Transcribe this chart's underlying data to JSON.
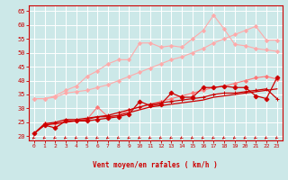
{
  "bg_color": "#cce8e8",
  "grid_color": "#ffffff",
  "xlabel": "Vent moyen/en rafales ( km/h )",
  "xlabel_color": "#cc0000",
  "tick_color": "#cc0000",
  "arrow_color": "#cc0000",
  "xlim": [
    -0.5,
    23.5
  ],
  "ylim": [
    18.5,
    67
  ],
  "yticks": [
    20,
    25,
    30,
    35,
    40,
    45,
    50,
    55,
    60,
    65
  ],
  "xticks": [
    0,
    1,
    2,
    3,
    4,
    5,
    6,
    7,
    8,
    9,
    10,
    11,
    12,
    13,
    14,
    15,
    16,
    17,
    18,
    19,
    20,
    21,
    22,
    23
  ],
  "series": [
    {
      "color": "#ffaaaa",
      "lw": 0.8,
      "marker": "D",
      "ms": 2.0,
      "y": [
        33.5,
        33.5,
        34.0,
        35.5,
        36.0,
        36.5,
        37.5,
        38.5,
        40.0,
        41.5,
        43.0,
        44.5,
        46.0,
        47.5,
        48.5,
        50.0,
        51.5,
        53.5,
        55.0,
        56.5,
        58.0,
        59.5,
        54.5,
        54.5
      ]
    },
    {
      "color": "#ffaaaa",
      "lw": 0.8,
      "marker": "D",
      "ms": 2.0,
      "y": [
        33.5,
        33.5,
        34.5,
        36.5,
        38.0,
        41.5,
        43.5,
        46.0,
        47.5,
        47.5,
        53.5,
        53.5,
        52.0,
        52.5,
        52.0,
        55.0,
        58.0,
        63.5,
        58.5,
        53.0,
        52.5,
        51.5,
        51.0,
        50.5
      ]
    },
    {
      "color": "#ff7777",
      "lw": 0.8,
      "marker": "D",
      "ms": 2.0,
      "y": [
        21.0,
        24.5,
        24.5,
        25.5,
        25.5,
        26.0,
        30.5,
        27.0,
        27.5,
        29.5,
        30.5,
        31.5,
        32.5,
        33.5,
        34.5,
        35.5,
        36.5,
        37.5,
        38.0,
        39.0,
        40.0,
        41.0,
        41.5,
        40.5
      ]
    },
    {
      "color": "#cc0000",
      "lw": 0.9,
      "marker": "D",
      "ms": 2.5,
      "y": [
        21.0,
        24.0,
        23.0,
        25.5,
        25.5,
        25.5,
        26.0,
        26.5,
        27.0,
        28.0,
        32.5,
        31.0,
        31.5,
        35.5,
        34.0,
        34.0,
        37.5,
        37.5,
        38.0,
        37.5,
        37.5,
        34.5,
        33.5,
        41.0
      ]
    },
    {
      "color": "#cc0000",
      "lw": 0.9,
      "marker": "+",
      "ms": 3.5,
      "y": [
        21.0,
        24.5,
        25.0,
        26.0,
        26.0,
        26.5,
        27.0,
        27.5,
        28.5,
        29.5,
        30.5,
        31.5,
        32.0,
        32.5,
        33.0,
        33.5,
        34.0,
        35.0,
        35.5,
        35.5,
        36.0,
        36.5,
        37.0,
        33.5
      ]
    },
    {
      "color": "#cc0000",
      "lw": 0.9,
      "marker": null,
      "ms": 0,
      "y": [
        21.0,
        24.0,
        24.5,
        25.0,
        25.5,
        26.0,
        27.0,
        27.0,
        27.5,
        28.5,
        29.5,
        30.5,
        31.0,
        31.5,
        32.0,
        32.5,
        33.0,
        34.0,
        34.5,
        35.0,
        35.5,
        36.0,
        36.5,
        37.0
      ]
    }
  ]
}
